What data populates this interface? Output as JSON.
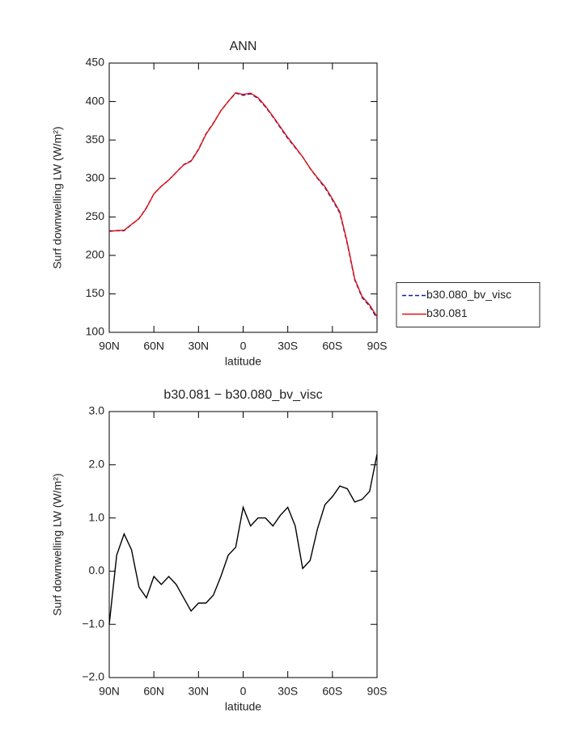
{
  "chart_data": [
    {
      "type": "line",
      "title": "ANN",
      "xlabel": "latitude",
      "ylabel": "Surf downwelling LW (W/m²)",
      "x": [
        90,
        85,
        80,
        75,
        70,
        65,
        60,
        55,
        50,
        45,
        40,
        35,
        30,
        25,
        20,
        15,
        10,
        5,
        0,
        -5,
        -10,
        -15,
        -20,
        -25,
        -30,
        -35,
        -40,
        -45,
        -50,
        -55,
        -60,
        -65,
        -70,
        -75,
        -80,
        -85,
        -90
      ],
      "xlim": [
        90,
        -90
      ],
      "xticks": [
        {
          "value": 90,
          "label": "90N"
        },
        {
          "value": 60,
          "label": "60N"
        },
        {
          "value": 30,
          "label": "30N"
        },
        0,
        {
          "value": -30,
          "label": "30S"
        },
        {
          "value": -60,
          "label": "60S"
        },
        {
          "value": -90,
          "label": "90S"
        }
      ],
      "ylim": [
        100,
        450
      ],
      "yticks": [
        100,
        150,
        200,
        250,
        300,
        350,
        400,
        450
      ],
      "legend": "right",
      "series": [
        {
          "name": "b30.080_bv_visc",
          "color": "#1a1aa8",
          "linestyle": "dashed",
          "values": [
            232,
            232,
            232,
            240,
            248,
            262,
            280,
            290,
            298,
            308,
            318,
            323,
            338,
            358,
            372,
            388,
            400,
            411,
            408,
            410,
            404,
            393,
            380,
            366,
            352,
            340,
            328,
            313,
            300,
            288,
            272,
            255,
            215,
            168,
            145,
            134,
            118
          ]
        },
        {
          "name": "b30.081",
          "color": "#e01010",
          "linestyle": "solid",
          "values": [
            231,
            232.3,
            232.7,
            240.4,
            247.7,
            261.5,
            279.9,
            289.8,
            297.9,
            307.8,
            317.5,
            322.3,
            337.4,
            357.4,
            371.6,
            387.9,
            400.3,
            411.5,
            409.2,
            410.9,
            405,
            394,
            380.9,
            367.1,
            353.2,
            340.9,
            328.1,
            313.2,
            300.8,
            289.3,
            273.4,
            256.6,
            216.6,
            169.3,
            146.4,
            135.5,
            120.2
          ]
        }
      ]
    },
    {
      "type": "line",
      "title": "b30.081 − b30.080_bv_visc",
      "xlabel": "latitude",
      "ylabel": "Surf downwelling LW (W/m²)",
      "x": [
        90,
        85,
        80,
        75,
        70,
        65,
        60,
        55,
        50,
        45,
        40,
        35,
        30,
        25,
        20,
        15,
        10,
        5,
        0,
        -5,
        -10,
        -15,
        -20,
        -25,
        -30,
        -35,
        -40,
        -45,
        -50,
        -55,
        -60,
        -65,
        -70,
        -75,
        -80,
        -85,
        -90
      ],
      "xlim": [
        90,
        -90
      ],
      "xticks": [
        {
          "value": 90,
          "label": "90N"
        },
        {
          "value": 60,
          "label": "60N"
        },
        {
          "value": 30,
          "label": "30N"
        },
        0,
        {
          "value": -30,
          "label": "30S"
        },
        {
          "value": -60,
          "label": "60S"
        },
        {
          "value": -90,
          "label": "90S"
        }
      ],
      "ylim": [
        -2,
        3
      ],
      "yticks": [
        {
          "value": -2,
          "label": "−2.0"
        },
        {
          "value": -1,
          "label": "−1.0"
        },
        {
          "value": 0,
          "label": "0.0"
        },
        {
          "value": 1,
          "label": "1.0"
        },
        {
          "value": 2,
          "label": "2.0"
        },
        {
          "value": 3,
          "label": "3.0"
        }
      ],
      "series": [
        {
          "color": "#000000",
          "linestyle": "solid",
          "values": [
            -1.0,
            0.3,
            0.7,
            0.4,
            -0.3,
            -0.5,
            -0.1,
            -0.25,
            -0.1,
            -0.25,
            -0.5,
            -0.75,
            -0.6,
            -0.6,
            -0.45,
            -0.1,
            0.3,
            0.45,
            1.2,
            0.85,
            1.0,
            1.0,
            0.85,
            1.05,
            1.2,
            0.85,
            0.05,
            0.2,
            0.8,
            1.25,
            1.4,
            1.6,
            1.55,
            1.3,
            1.35,
            1.5,
            2.2
          ]
        }
      ]
    }
  ]
}
